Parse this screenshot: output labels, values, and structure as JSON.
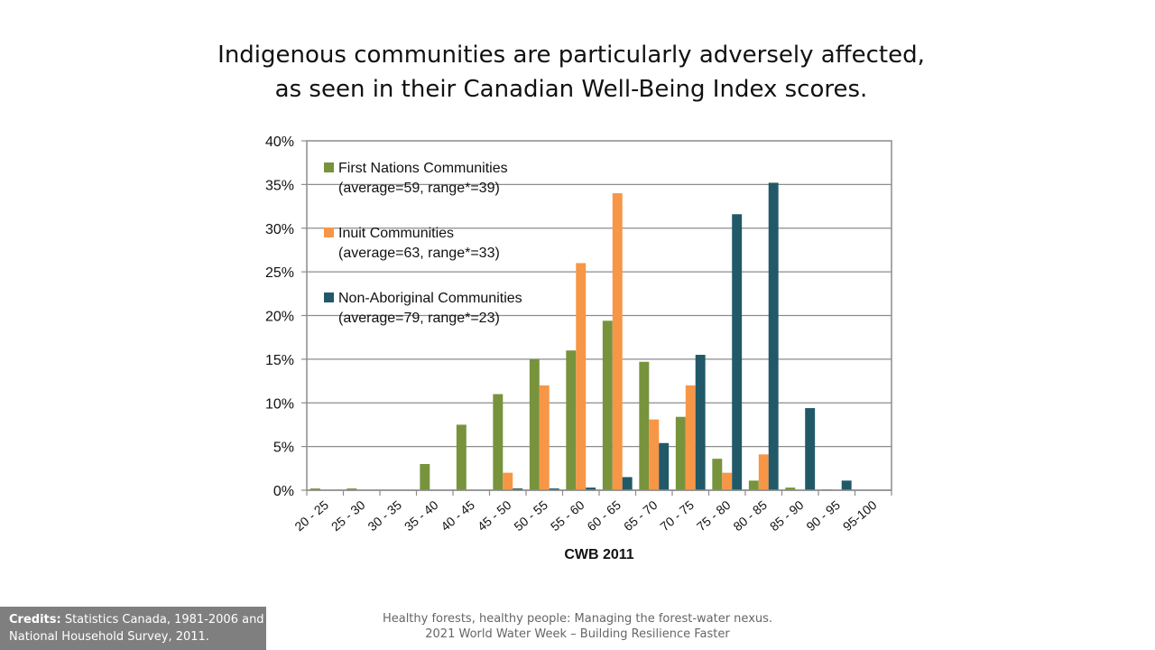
{
  "slide": {
    "title_line1": "Indigenous communities are particularly adversely affected,",
    "title_line2": "as seen in their Canadian Well-Being Index scores.",
    "credits_label": "Credits:",
    "credits_text_line1": " Statistics Canada, 1981-2006 and",
    "credits_text_line2": "National Household Survey, 2011.",
    "footer_line1": "Healthy forests, healthy people: Managing the forest-water nexus.",
    "footer_line2": "2021 World Water Week – Building Resilience Faster"
  },
  "chart_data": {
    "type": "bar",
    "xlabel": "CWB 2011",
    "ylabel": "",
    "ylim": [
      0,
      40
    ],
    "yticks": [
      "0%",
      "5%",
      "10%",
      "15%",
      "20%",
      "25%",
      "30%",
      "35%",
      "40%"
    ],
    "grid": true,
    "legend_position": "top-left",
    "categories": [
      "20 - 25",
      "25 - 30",
      "30 - 35",
      "35 - 40",
      "40 - 45",
      "45 - 50",
      "50 - 55",
      "55 - 60",
      "60 - 65",
      "65 - 70",
      "70 - 75",
      "75 - 80",
      "80 - 85",
      "85 - 90",
      "90 - 95",
      "95-100"
    ],
    "series": [
      {
        "name": "First Nations Communities",
        "legend_note": "(average=59, range*=39)",
        "color": "#77933c",
        "values": [
          0.2,
          0.2,
          0,
          3.0,
          7.5,
          11.0,
          15.0,
          16.0,
          19.4,
          14.7,
          8.4,
          3.6,
          1.1,
          0.3,
          0.1,
          0
        ]
      },
      {
        "name": "Inuit Communities",
        "legend_note": "(average=63, range*=33)",
        "color": "#f79646",
        "values": [
          0,
          0,
          0,
          0,
          0,
          2.0,
          12.0,
          26.0,
          34.0,
          8.1,
          12.0,
          2.0,
          4.1,
          0,
          0,
          0
        ]
      },
      {
        "name": "Non-Aboriginal Communities",
        "legend_note": "(average=79, range*=23)",
        "color": "#215968",
        "values": [
          0,
          0,
          0,
          0,
          0,
          0.2,
          0.2,
          0.3,
          1.5,
          5.4,
          15.5,
          31.6,
          35.2,
          9.4,
          1.1,
          0
        ]
      }
    ]
  }
}
